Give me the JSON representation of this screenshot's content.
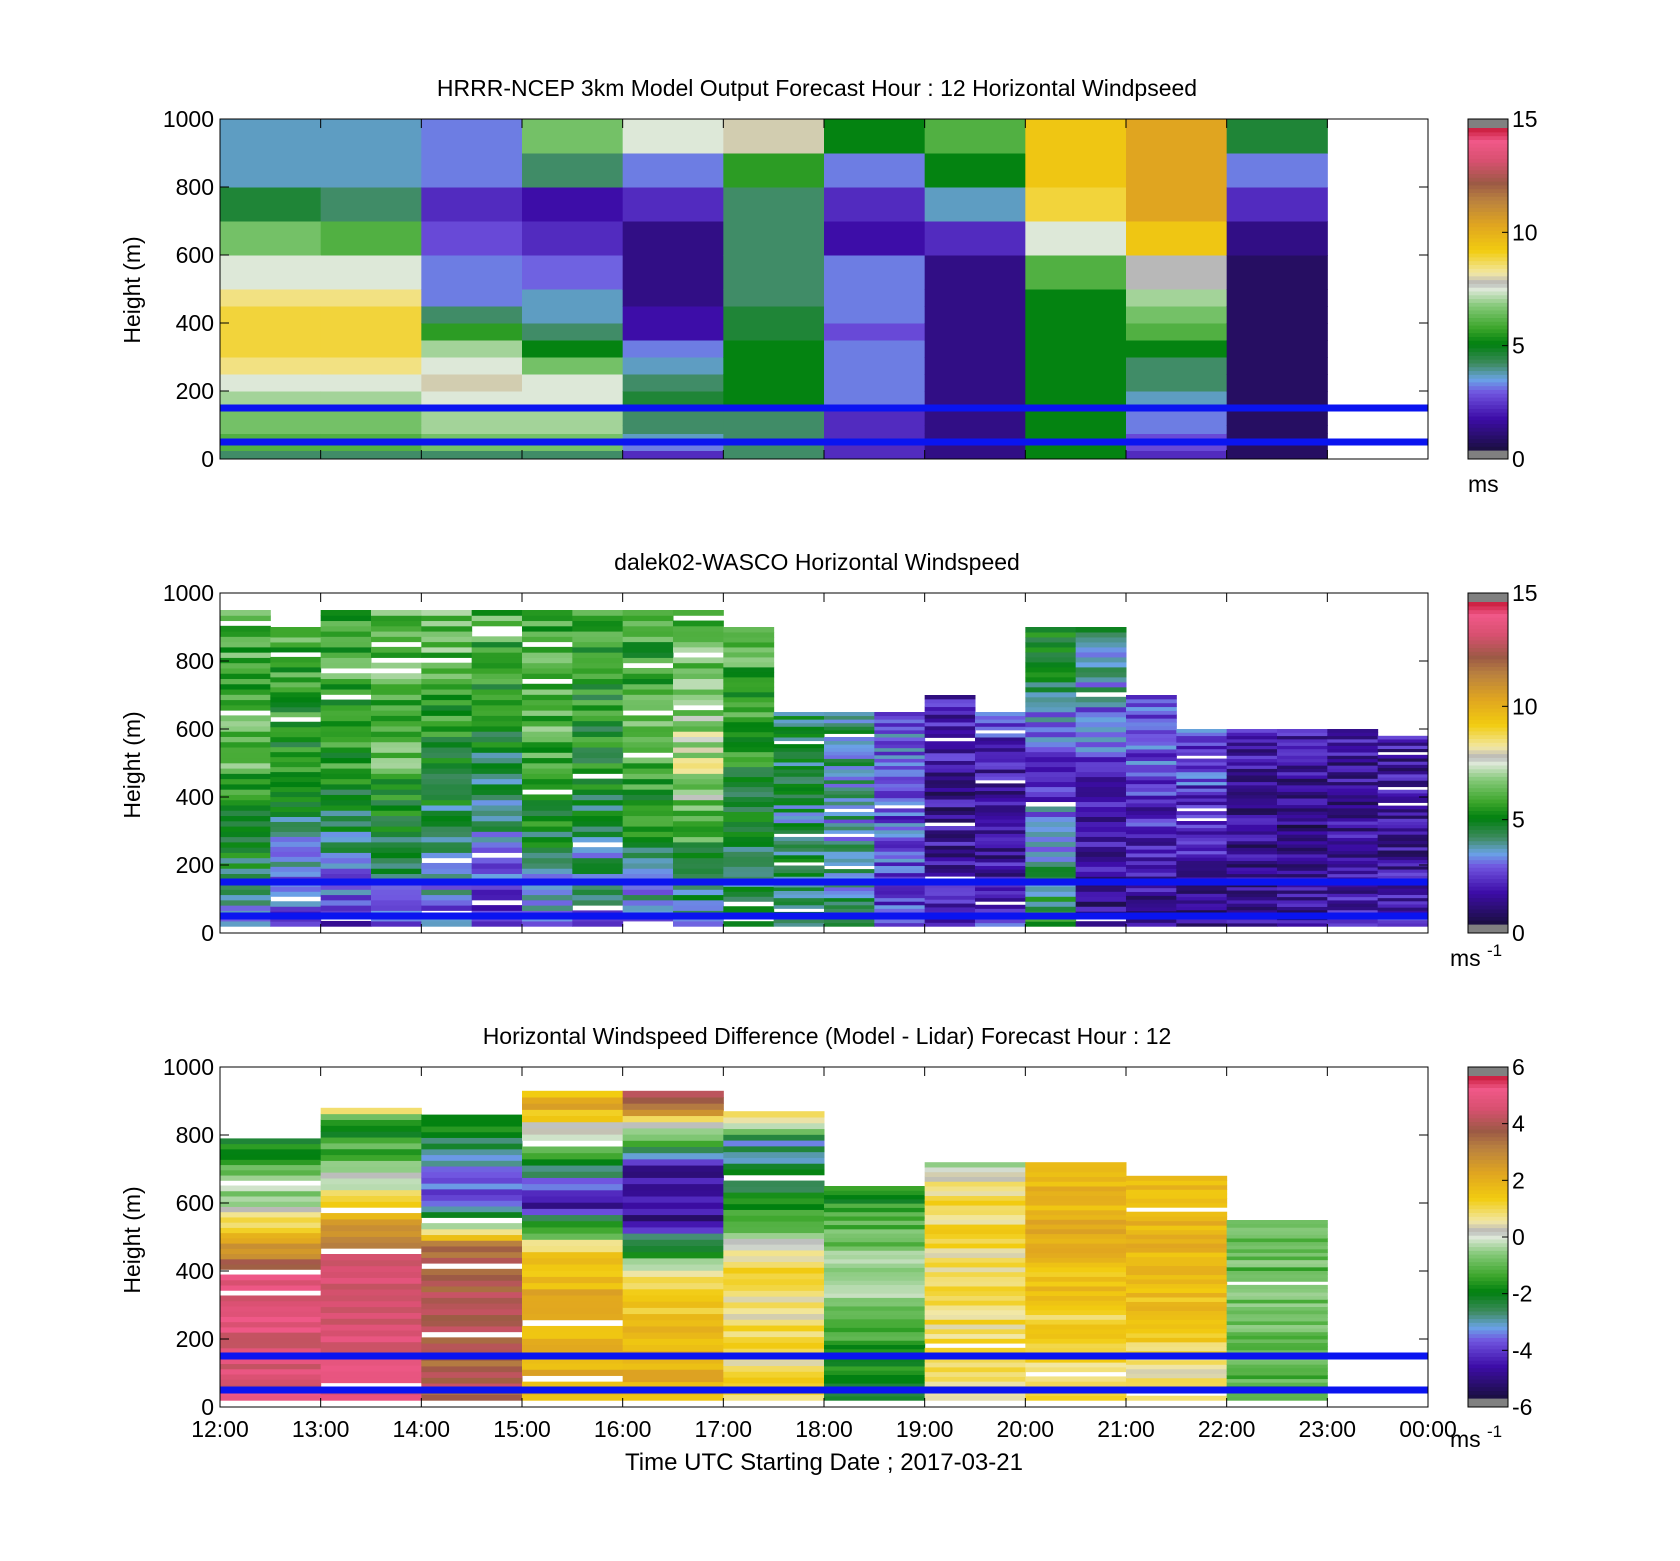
{
  "chart_data": [
    {
      "type": "heatmap",
      "title": "HRRR-NCEP 3km Model Output   Forecast Hour : 12 Horizontal Windpseed",
      "ylabel": "Height (m)",
      "ylim": [
        0,
        1000
      ],
      "yticks": [
        "0",
        "200",
        "400",
        "600",
        "800",
        "1000"
      ],
      "colorbar": {
        "range": [
          0,
          15
        ],
        "ticks": [
          "0",
          "5",
          "10",
          "15"
        ],
        "unit": "ms",
        "unit_sup": ""
      },
      "hour_start": 12,
      "heights": [
        0,
        25,
        50,
        75,
        100,
        150,
        200,
        250,
        300,
        350,
        400,
        450,
        500,
        600,
        700,
        800,
        900,
        1000
      ],
      "columns": [
        [
          4,
          6,
          6,
          6.5,
          6.5,
          7,
          7.5,
          8.5,
          9,
          9,
          9,
          8.5,
          7.5,
          6.5,
          4.5,
          3.5,
          3.5
        ],
        [
          4,
          6,
          6,
          6.5,
          6.5,
          7,
          7.5,
          8.5,
          9,
          9,
          9,
          8.5,
          7.5,
          6,
          4,
          3.5,
          3.5
        ],
        [
          4,
          6.5,
          6.5,
          7,
          7,
          7.5,
          8,
          7.5,
          7,
          5.5,
          4,
          3,
          3,
          2.5,
          2,
          3,
          3
        ],
        [
          4,
          6.5,
          6.5,
          7,
          7,
          7.5,
          7.5,
          6.5,
          5,
          4,
          3.5,
          3.5,
          2.8,
          2,
          1.5,
          4,
          6.5
        ],
        [
          2,
          3,
          3.5,
          4,
          4,
          4.5,
          4,
          3.5,
          3,
          1.5,
          1.5,
          1,
          1,
          1,
          2,
          3,
          7.5
        ],
        [
          4,
          4,
          4,
          4,
          4,
          5,
          5,
          5,
          5,
          4.5,
          4.5,
          4,
          4,
          4,
          4,
          5.5,
          8
        ],
        [
          2,
          2,
          2,
          2,
          2,
          3,
          3,
          3,
          3,
          2.5,
          3,
          3,
          3,
          1.5,
          2,
          3,
          5
        ],
        [
          1,
          1,
          1,
          1,
          1,
          1,
          1,
          1,
          1,
          1,
          1,
          1,
          1,
          2,
          3.5,
          5,
          6
        ],
        [
          5,
          5,
          5,
          5,
          5,
          5,
          5,
          5,
          5,
          5,
          5,
          5,
          6,
          7.5,
          9,
          9.5,
          9.5
        ],
        [
          2,
          2.5,
          2.5,
          3,
          3,
          3.5,
          4,
          4,
          5,
          6,
          6.5,
          7,
          7.8,
          9.5,
          10.5,
          10.5,
          10.5
        ],
        [
          0.5,
          0.5,
          0.5,
          0.5,
          0.5,
          0.5,
          0.5,
          0.5,
          0.5,
          0.5,
          0.5,
          0.5,
          0.5,
          1,
          2,
          3,
          4.5
        ]
      ]
    },
    {
      "type": "heatmap",
      "title": "dalek02-WASCO  Horizontal Windspeed",
      "ylabel": "Height (m)",
      "ylim": [
        0,
        1000
      ],
      "yticks": [
        "0",
        "200",
        "400",
        "600",
        "800",
        "1000"
      ],
      "colorbar": {
        "range": [
          0,
          15
        ],
        "ticks": [
          "0",
          "5",
          "10",
          "15"
        ],
        "unit": "ms",
        "unit_sup": "-1"
      },
      "hour_start": 12,
      "blocks": [
        {
          "h": 12.0,
          "top": 950,
          "low": 3.5,
          "mid": 6.0,
          "up": 6.0
        },
        {
          "h": 12.5,
          "top": 900,
          "low": 2.5,
          "mid": 5.0,
          "up": 6.0
        },
        {
          "h": 13.0,
          "top": 950,
          "low": 2.0,
          "mid": 5.5,
          "up": 6.0
        },
        {
          "h": 13.5,
          "top": 950,
          "low": 3.0,
          "mid": 6.0,
          "up": 6.5
        },
        {
          "h": 14.0,
          "top": 950,
          "low": 2.5,
          "mid": 5.0,
          "up": 6.5
        },
        {
          "h": 14.5,
          "top": 950,
          "low": 2.0,
          "mid": 4.5,
          "up": 6.0
        },
        {
          "h": 15.0,
          "top": 950,
          "low": 3.0,
          "mid": 6.0,
          "up": 6.0
        },
        {
          "h": 15.5,
          "top": 950,
          "low": 3.0,
          "mid": 5.0,
          "up": 5.5
        },
        {
          "h": 16.0,
          "top": 950,
          "low": 3.0,
          "mid": 6.0,
          "up": 5.5
        },
        {
          "h": 16.5,
          "top": 950,
          "low": 3.5,
          "mid": 7.5,
          "up": 6.0
        },
        {
          "h": 17.0,
          "top": 900,
          "low": 4.0,
          "mid": 5.0,
          "up": 6.0
        },
        {
          "h": 17.5,
          "top": 650,
          "low": 4.5,
          "mid": 4.0,
          "up": 4.5
        },
        {
          "h": 18.0,
          "top": 650,
          "low": 4.0,
          "mid": 3.5,
          "up": 4.0
        },
        {
          "h": 18.5,
          "top": 650,
          "low": 2.5,
          "mid": 2.5,
          "up": 3.0
        },
        {
          "h": 19.0,
          "top": 700,
          "low": 2.0,
          "mid": 1.2,
          "up": 2.0
        },
        {
          "h": 19.5,
          "top": 650,
          "low": 2.0,
          "mid": 1.0,
          "up": 2.5
        },
        {
          "h": 20.0,
          "top": 900,
          "low": 5.0,
          "mid": 2.0,
          "up": 5.5
        },
        {
          "h": 20.5,
          "top": 900,
          "low": 1.0,
          "mid": 2.0,
          "up": 4.5
        },
        {
          "h": 21.0,
          "top": 700,
          "low": 1.0,
          "mid": 2.0,
          "up": 3.0
        },
        {
          "h": 21.5,
          "top": 600,
          "low": 1.0,
          "mid": 2.0,
          "up": 2.5
        },
        {
          "h": 22.0,
          "top": 600,
          "low": 1.5,
          "mid": 1.2,
          "up": 1.5
        },
        {
          "h": 22.5,
          "top": 600,
          "low": 1.5,
          "mid": 1.0,
          "up": 1.5
        },
        {
          "h": 23.0,
          "top": 600,
          "low": 2.0,
          "mid": 1.2,
          "up": 1.5
        },
        {
          "h": 23.5,
          "top": 580,
          "low": 2.0,
          "mid": 1.2,
          "up": 1.5
        }
      ]
    },
    {
      "type": "heatmap",
      "title": "Horizontal Windspeed Difference (Model - Lidar) Forecast Hour : 12",
      "ylabel": "Height (m)",
      "ylim": [
        0,
        1000
      ],
      "yticks": [
        "0",
        "200",
        "400",
        "600",
        "800",
        "1000"
      ],
      "xlabel": "Time UTC  Starting Date ; 2017-03-21",
      "xticks": [
        "12:00",
        "13:00",
        "14:00",
        "15:00",
        "16:00",
        "17:00",
        "18:00",
        "19:00",
        "20:00",
        "21:00",
        "22:00",
        "23:00",
        "00:00"
      ],
      "colorbar": {
        "range": [
          -6,
          6
        ],
        "ticks": [
          "-6",
          "-4",
          "-2",
          "0",
          "2",
          "4",
          "6"
        ],
        "unit": "ms",
        "unit_sup": "-1"
      },
      "hour_start": 12,
      "blocks": [
        {
          "top": 790,
          "base": 20,
          "bands": [
            [
              150,
              5
            ],
            [
              380,
              5
            ],
            [
              500,
              2
            ],
            [
              580,
              0
            ],
            [
              790,
              -2
            ]
          ]
        },
        {
          "top": 880,
          "base": 20,
          "bands": [
            [
              150,
              5
            ],
            [
              430,
              5
            ],
            [
              550,
              2
            ],
            [
              650,
              0
            ],
            [
              820,
              -2
            ],
            [
              880,
              1
            ]
          ]
        },
        {
          "top": 860,
          "base": 20,
          "bands": [
            [
              150,
              4
            ],
            [
              480,
              4
            ],
            [
              550,
              -2.5
            ],
            [
              640,
              -4
            ],
            [
              820,
              -2
            ],
            [
              860,
              -2
            ]
          ]
        },
        {
          "top": 930,
          "base": 20,
          "bands": [
            [
              150,
              2
            ],
            [
              450,
              2
            ],
            [
              600,
              -5
            ],
            [
              720,
              -2
            ],
            [
              880,
              2
            ],
            [
              930,
              2
            ]
          ]
        },
        {
          "top": 930,
          "base": 20,
          "bands": [
            [
              150,
              2
            ],
            [
              380,
              1
            ],
            [
              550,
              -5
            ],
            [
              700,
              -5
            ],
            [
              880,
              3
            ],
            [
              930,
              4
            ]
          ]
        },
        {
          "top": 870,
          "base": 20,
          "bands": [
            [
              150,
              1
            ],
            [
              420,
              1
            ],
            [
              600,
              -2
            ],
            [
              780,
              -3
            ],
            [
              870,
              2
            ]
          ]
        },
        {
          "top": 650,
          "base": 20,
          "bands": [
            [
              150,
              -2
            ],
            [
              380,
              0
            ],
            [
              500,
              -1
            ],
            [
              650,
              -2
            ]
          ]
        },
        {
          "top": 720,
          "base": 20,
          "bands": [
            [
              150,
              1
            ],
            [
              420,
              1
            ],
            [
              650,
              1
            ],
            [
              720,
              -1
            ]
          ]
        },
        {
          "top": 720,
          "base": 20,
          "bands": [
            [
              150,
              1
            ],
            [
              420,
              2
            ],
            [
              600,
              2
            ],
            [
              720,
              2
            ]
          ]
        },
        {
          "top": 680,
          "base": 20,
          "bands": [
            [
              150,
              1
            ],
            [
              400,
              2
            ],
            [
              480,
              2
            ]
          ]
        },
        {
          "top": 550,
          "base": 20,
          "bands": [
            [
              150,
              -1
            ],
            [
              400,
              -1
            ],
            [
              550,
              -1
            ]
          ]
        }
      ]
    }
  ]
}
